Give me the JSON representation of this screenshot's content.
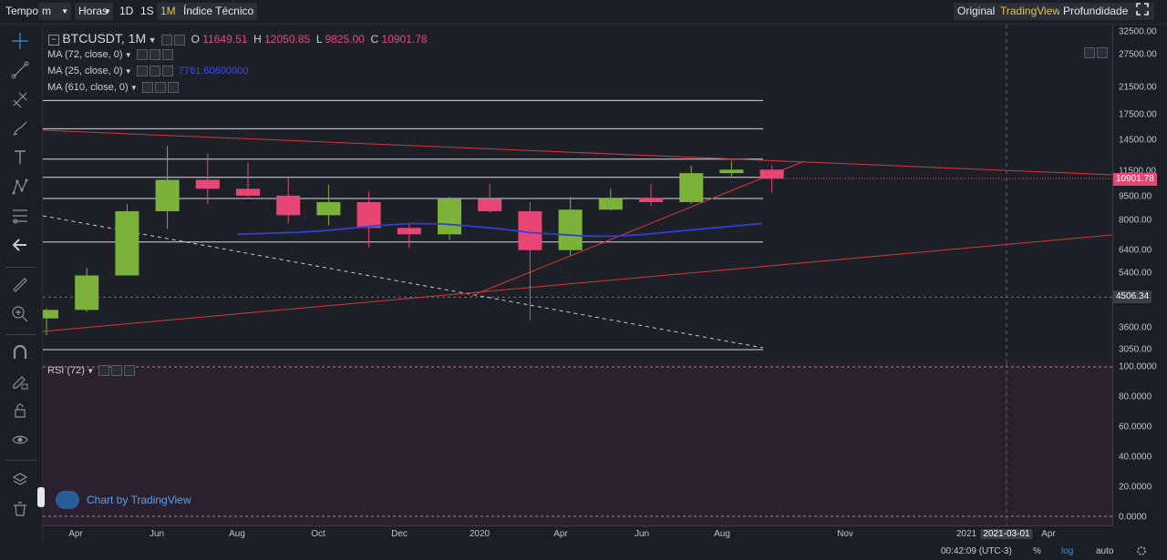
{
  "toolbar": {
    "tempo_label": "Tempo",
    "interval_select": "m",
    "horas_select": "Horas",
    "btn_1d": "1D",
    "btn_1s": "1S",
    "btn_1m": "1M",
    "btn_indice": "Índice Técnico",
    "view_original": "Original",
    "view_tradingview": "TradingView",
    "view_profundidade": "Profundidade",
    "fullscreen_icon": "fullscreen-icon"
  },
  "sidebar_icons": [
    "crosshair-icon",
    "trendline-icon",
    "pitchfork-icon",
    "brush-icon",
    "text-icon",
    "pattern-icon",
    "fib-icon",
    "back-arrow-icon",
    "ruler-icon",
    "zoom-icon",
    "magnet-icon",
    "lock-draw-icon",
    "lock-icon",
    "eye-icon",
    "layers-icon",
    "trash-icon"
  ],
  "legend": {
    "symbol": "BTCUSDT, 1M",
    "o_label": "O",
    "o_value": "11649.51",
    "h_label": "H",
    "h_value": "12050.85",
    "l_label": "L",
    "l_value": "9825.00",
    "c_label": "C",
    "c_value": "10901.78",
    "ma1": "MA (72, close, 0)",
    "ma2": "MA (25, close, 0)",
    "ma2_value": "7761.60600000",
    "ma3": "MA (610, close, 0)"
  },
  "rsi": {
    "label": "RSI (72)"
  },
  "price_axis": [
    "32500.00",
    "27500.00",
    "21500.00",
    "17500.00",
    "14500.00",
    "11500.00",
    "9500.00",
    "8000.00",
    "6400.00",
    "5400.00",
    "3600.00",
    "3050.00"
  ],
  "price_tags": {
    "last": "10901.78",
    "crosshair": "4506.34"
  },
  "rsi_axis": [
    "100.0000",
    "80.0000",
    "60.0000",
    "40.0000",
    "20.0000",
    "0.0000"
  ],
  "time_axis": [
    "Apr",
    "Jun",
    "Aug",
    "Oct",
    "Dec",
    "2020",
    "Apr",
    "Jun",
    "Aug",
    "Nov",
    "2021",
    "2021-03-01",
    "Apr"
  ],
  "watermark": "Chart by TradingView",
  "status": {
    "time": "00:42:09 (UTC-3)",
    "percent": "%",
    "log": "log",
    "auto": "auto"
  },
  "colors": {
    "up": "#7cb23a",
    "down": "#e84776",
    "ma": "#2f3fd6",
    "trend": "#d9373a",
    "accent": "#e8c33a",
    "log_active": "#3b8ede"
  },
  "chart_data": {
    "type": "candlestick",
    "symbol": "BTCUSDT",
    "interval": "1M",
    "scale": "log",
    "ylim": [
      3000,
      33000
    ],
    "candles": [
      {
        "o": 3850,
        "h": 4150,
        "l": 3400,
        "c": 4100,
        "dir": "up"
      },
      {
        "o": 4100,
        "h": 5600,
        "l": 4050,
        "c": 5300,
        "dir": "up"
      },
      {
        "o": 5300,
        "h": 9000,
        "l": 5300,
        "c": 8550,
        "dir": "up"
      },
      {
        "o": 8550,
        "h": 13900,
        "l": 7500,
        "c": 10800,
        "dir": "up"
      },
      {
        "o": 10800,
        "h": 13150,
        "l": 9000,
        "c": 10100,
        "dir": "down"
      },
      {
        "o": 10100,
        "h": 12300,
        "l": 9350,
        "c": 9600,
        "dir": "down"
      },
      {
        "o": 9600,
        "h": 10950,
        "l": 7800,
        "c": 8300,
        "dir": "down"
      },
      {
        "o": 8300,
        "h": 10400,
        "l": 7700,
        "c": 9150,
        "dir": "up"
      },
      {
        "o": 9150,
        "h": 9900,
        "l": 6550,
        "c": 7550,
        "dir": "down"
      },
      {
        "o": 7550,
        "h": 7800,
        "l": 6500,
        "c": 7200,
        "dir": "down"
      },
      {
        "o": 7200,
        "h": 9500,
        "l": 6900,
        "c": 9350,
        "dir": "up"
      },
      {
        "o": 9350,
        "h": 10500,
        "l": 8450,
        "c": 8550,
        "dir": "down"
      },
      {
        "o": 8550,
        "h": 9150,
        "l": 3800,
        "c": 6400,
        "dir": "down"
      },
      {
        "o": 6400,
        "h": 9500,
        "l": 6150,
        "c": 8650,
        "dir": "up"
      },
      {
        "o": 8650,
        "h": 10100,
        "l": 8600,
        "c": 9450,
        "dir": "up"
      },
      {
        "o": 9450,
        "h": 10450,
        "l": 8900,
        "c": 9150,
        "dir": "down"
      },
      {
        "o": 9150,
        "h": 12000,
        "l": 9000,
        "c": 11350,
        "dir": "up"
      },
      {
        "o": 11350,
        "h": 12450,
        "l": 11000,
        "c": 11650,
        "dir": "up"
      },
      {
        "o": 11650,
        "h": 12050,
        "l": 9825,
        "c": 10900,
        "dir": "down"
      }
    ],
    "horizontal_levels": [
      19500,
      15800,
      12600,
      11000,
      9400,
      6800,
      3050
    ],
    "ma_series": [
      7200,
      7250,
      7300,
      7400,
      7550,
      7700,
      7800,
      7780,
      7650,
      7500,
      7300,
      7200,
      7100,
      7100,
      7200,
      7350,
      7500,
      7650,
      7800
    ]
  }
}
